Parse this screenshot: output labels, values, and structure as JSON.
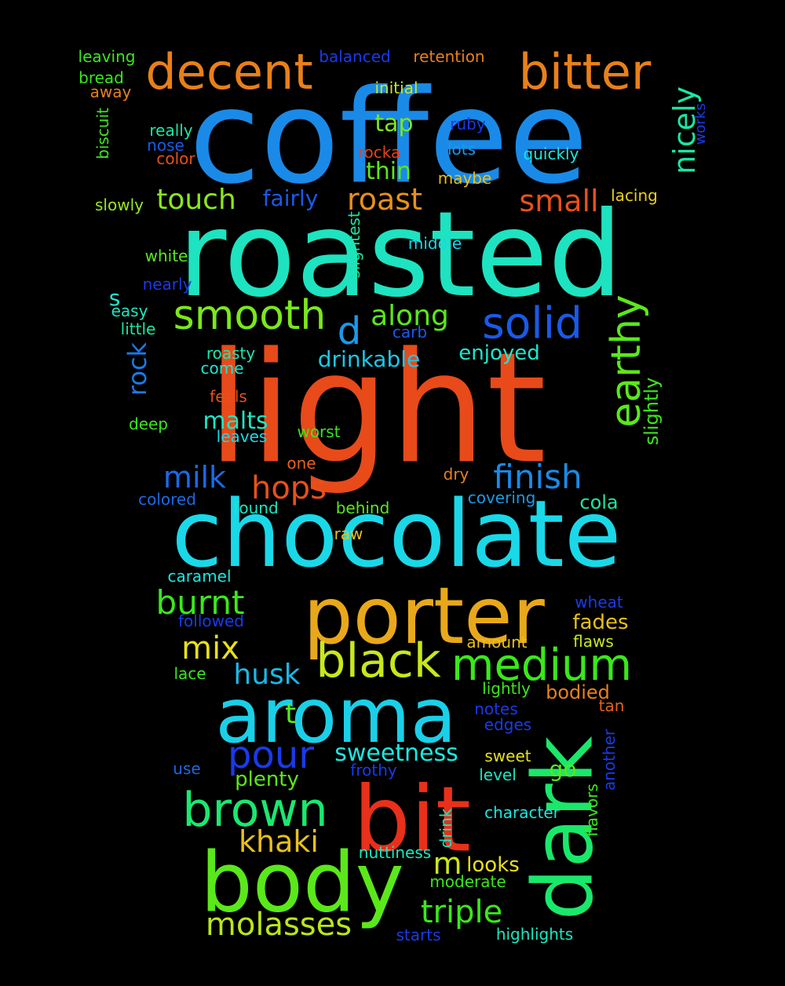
{
  "words": [
    {
      "text": "coffee",
      "color": "#1a8ae8"
    },
    {
      "text": "roasted",
      "color": "#1ee3c0"
    },
    {
      "text": "light",
      "color": "#e84a1a"
    },
    {
      "text": "chocolate",
      "color": "#1ad8e8"
    },
    {
      "text": "porter",
      "color": "#e8a81a"
    },
    {
      "text": "aroma",
      "color": "#1ad0e8"
    },
    {
      "text": "body",
      "color": "#5ae81a"
    },
    {
      "text": "bit",
      "color": "#e8301a"
    },
    {
      "text": "dark",
      "color": "#1ae86a"
    },
    {
      "text": "decent",
      "color": "#e8801a"
    },
    {
      "text": "bitter",
      "color": "#e8801a"
    },
    {
      "text": "smooth",
      "color": "#7ae81a"
    },
    {
      "text": "solid",
      "color": "#1a5ae8"
    },
    {
      "text": "earthy",
      "color": "#5ae81a"
    },
    {
      "text": "black",
      "color": "#c8e81a"
    },
    {
      "text": "medium",
      "color": "#3ae81a"
    },
    {
      "text": "brown",
      "color": "#1ae870"
    },
    {
      "text": "triple",
      "color": "#3ae81a"
    },
    {
      "text": "molasses",
      "color": "#b8e81a"
    },
    {
      "text": "pour",
      "color": "#1a3ae8"
    },
    {
      "text": "finish",
      "color": "#1a8ae8"
    },
    {
      "text": "burnt",
      "color": "#3ae81a"
    },
    {
      "text": "roast",
      "color": "#e8901a"
    },
    {
      "text": "touch",
      "color": "#8ae81a"
    },
    {
      "text": "hops",
      "color": "#e8501a"
    },
    {
      "text": "milk",
      "color": "#1a6ae8"
    },
    {
      "text": "husk",
      "color": "#1ab8e8"
    },
    {
      "text": "mix",
      "color": "#e8e01a"
    },
    {
      "text": "khaki",
      "color": "#e8c01a"
    },
    {
      "text": "nicely",
      "color": "#1ae8a0"
    },
    {
      "text": "small",
      "color": "#e8501a"
    },
    {
      "text": "along",
      "color": "#5ae81a"
    },
    {
      "text": "d",
      "color": "#1a9ae8"
    },
    {
      "text": "rock",
      "color": "#1a7ae8"
    },
    {
      "text": "malts",
      "color": "#1ae8c0"
    },
    {
      "text": "drinkable",
      "color": "#1ac8e8"
    },
    {
      "text": "enjoyed",
      "color": "#1ae8d0"
    },
    {
      "text": "fairly",
      "color": "#1a5ae8"
    },
    {
      "text": "thin",
      "color": "#5ae81a"
    },
    {
      "text": "tap",
      "color": "#7ae81a"
    },
    {
      "text": "sweetness",
      "color": "#1ae8e0"
    },
    {
      "text": "m",
      "color": "#c8e81a"
    },
    {
      "text": "t",
      "color": "#5ae81a"
    },
    {
      "text": "s",
      "color": "#1ae8d0"
    },
    {
      "text": "plenty",
      "color": "#5ae81a"
    },
    {
      "text": "go",
      "color": "#5ae81a"
    },
    {
      "text": "looks",
      "color": "#e8e01a"
    },
    {
      "text": "fades",
      "color": "#e8c01a"
    },
    {
      "text": "cola",
      "color": "#1ae8a0"
    },
    {
      "text": "slightly",
      "color": "#3ae81a"
    },
    {
      "text": "leaving",
      "color": "#3ae81a"
    },
    {
      "text": "balanced",
      "color": "#1a3ae8"
    },
    {
      "text": "retention",
      "color": "#e8801a"
    },
    {
      "text": "bread",
      "color": "#3ae81a"
    },
    {
      "text": "away",
      "color": "#e8801a"
    },
    {
      "text": "initial",
      "color": "#c8e81a"
    },
    {
      "text": "really",
      "color": "#1ae8a0"
    },
    {
      "text": "nose",
      "color": "#1a5ae8"
    },
    {
      "text": "color",
      "color": "#e8501a"
    },
    {
      "text": "biscuit",
      "color": "#3ae81a"
    },
    {
      "text": "rocka",
      "color": "#e8401a"
    },
    {
      "text": "lots",
      "color": "#1a9ae8"
    },
    {
      "text": "ruby",
      "color": "#1a3ae8"
    },
    {
      "text": "quickly",
      "color": "#1ae8e0"
    },
    {
      "text": "works",
      "color": "#1a3ae8"
    },
    {
      "text": "maybe",
      "color": "#e8c01a"
    },
    {
      "text": "lacing",
      "color": "#e8d01a"
    },
    {
      "text": "slowly",
      "color": "#9ae81a"
    },
    {
      "text": "white",
      "color": "#5ae81a"
    },
    {
      "text": "middle",
      "color": "#1ad8e8"
    },
    {
      "text": "slightest",
      "color": "#1ae8a0"
    },
    {
      "text": "nearly",
      "color": "#1a3ae8"
    },
    {
      "text": "easy",
      "color": "#1ae8c0"
    },
    {
      "text": "little",
      "color": "#1ae8a0"
    },
    {
      "text": "carb",
      "color": "#1a5ae8"
    },
    {
      "text": "roasty",
      "color": "#1ae8b0"
    },
    {
      "text": "come",
      "color": "#1ae8d0"
    },
    {
      "text": "feels",
      "color": "#e8501a"
    },
    {
      "text": "deep",
      "color": "#3ae81a"
    },
    {
      "text": "leaves",
      "color": "#1ad8e8"
    },
    {
      "text": "worst",
      "color": "#3ae81a"
    },
    {
      "text": "one",
      "color": "#e8601a"
    },
    {
      "text": "dry",
      "color": "#e8801a"
    },
    {
      "text": "colored",
      "color": "#1a6ae8"
    },
    {
      "text": "found",
      "color": "#1ae8c0"
    },
    {
      "text": "behind",
      "color": "#5ae81a"
    },
    {
      "text": "covering",
      "color": "#1a9ae8"
    },
    {
      "text": "raw",
      "color": "#e8c01a"
    },
    {
      "text": "caramel",
      "color": "#1ae8e0"
    },
    {
      "text": "wheat",
      "color": "#1a3ae8"
    },
    {
      "text": "followed",
      "color": "#1a3ae8"
    },
    {
      "text": "flaws",
      "color": "#c8e81a"
    },
    {
      "text": "amount",
      "color": "#e8c01a"
    },
    {
      "text": "lace",
      "color": "#3ae81a"
    },
    {
      "text": "lightly",
      "color": "#3ae81a"
    },
    {
      "text": "bodied",
      "color": "#e8801a"
    },
    {
      "text": "tan",
      "color": "#e8601a"
    },
    {
      "text": "notes",
      "color": "#1a3ae8"
    },
    {
      "text": "edges",
      "color": "#1a3ae8"
    },
    {
      "text": "another",
      "color": "#1a3ae8"
    },
    {
      "text": "use",
      "color": "#1a6ae8"
    },
    {
      "text": "frothy",
      "color": "#1a3ae8"
    },
    {
      "text": "sweet",
      "color": "#e8e01a"
    },
    {
      "text": "level",
      "color": "#1ae8c0"
    },
    {
      "text": "flavors",
      "color": "#3ae81a"
    },
    {
      "text": "drink",
      "color": "#1ae8c0"
    },
    {
      "text": "character",
      "color": "#1ae8e0"
    },
    {
      "text": "nuttiness",
      "color": "#1ae8c0"
    },
    {
      "text": "moderate",
      "color": "#3ae81a"
    },
    {
      "text": "starts",
      "color": "#1a3ae8"
    },
    {
      "text": "highlights",
      "color": "#1ae8c0"
    }
  ]
}
